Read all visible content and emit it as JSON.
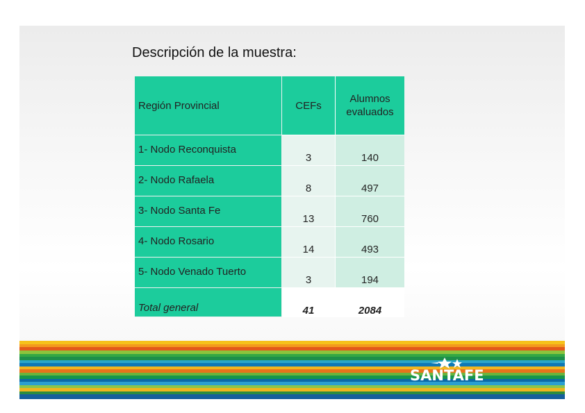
{
  "title": "Descripción de la muestra:",
  "table": {
    "headers": {
      "region": "Región Provincial",
      "cefs": "CEFs",
      "alumnos_line1": "Alumnos",
      "alumnos_line2": "evaluados"
    },
    "rows": [
      {
        "region": "1- Nodo Reconquista",
        "cefs": "3",
        "alumnos": "140"
      },
      {
        "region": "2- Nodo Rafaela",
        "cefs": "8",
        "alumnos": "497"
      },
      {
        "region": "3- Nodo Santa Fe",
        "cefs": "13",
        "alumnos": "760"
      },
      {
        "region": "4- Nodo Rosario",
        "cefs": "14",
        "alumnos": "493"
      },
      {
        "region": "5- Nodo Venado Tuerto",
        "cefs": "3",
        "alumnos": "194"
      }
    ],
    "total": {
      "region": "Total general",
      "cefs": "41",
      "alumnos": "2084"
    }
  },
  "logo": {
    "text": "SANTAFE"
  },
  "colors": {
    "header_green": "#1ccc9c",
    "cef_cell": "#e7f4ef",
    "alumnos_cell": "#cfeee2"
  }
}
